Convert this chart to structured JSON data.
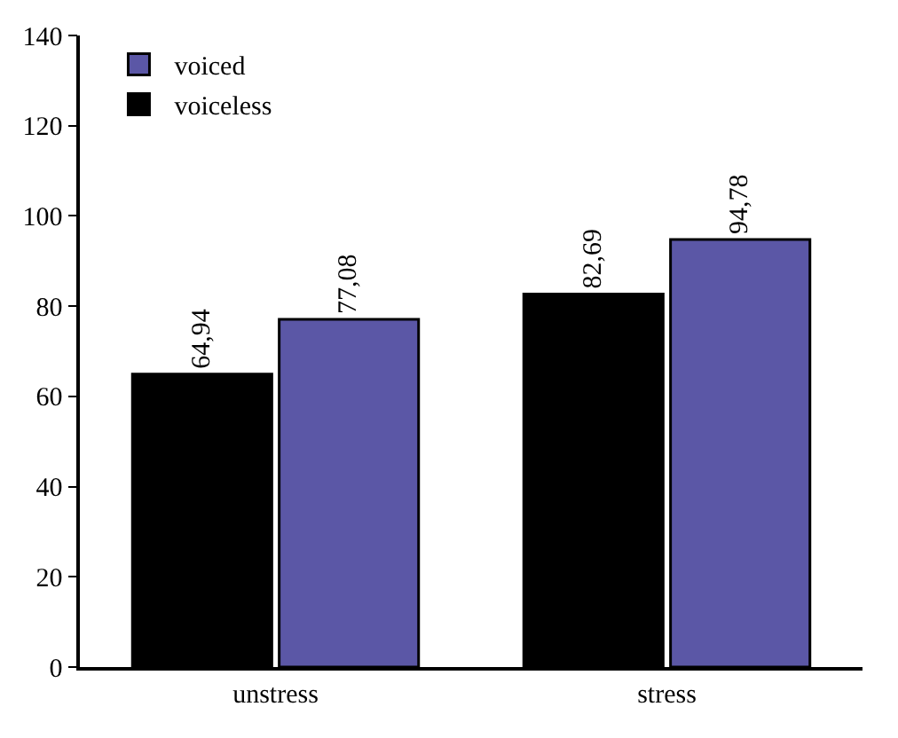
{
  "chart_data": {
    "type": "bar",
    "categories": [
      "unstress",
      "stress"
    ],
    "series": [
      {
        "name": "voiceless",
        "color": "#000000",
        "values": [
          64.94,
          82.69
        ],
        "value_labels": [
          "64,94",
          "82,69"
        ]
      },
      {
        "name": "voiced",
        "color": "#5b57a6",
        "values": [
          77.08,
          94.78
        ],
        "value_labels": [
          "77,08",
          "94,78"
        ]
      }
    ],
    "ylim": [
      0,
      140
    ],
    "yticks": [
      0,
      20,
      40,
      60,
      80,
      100,
      120,
      140
    ],
    "legend": "top left"
  }
}
